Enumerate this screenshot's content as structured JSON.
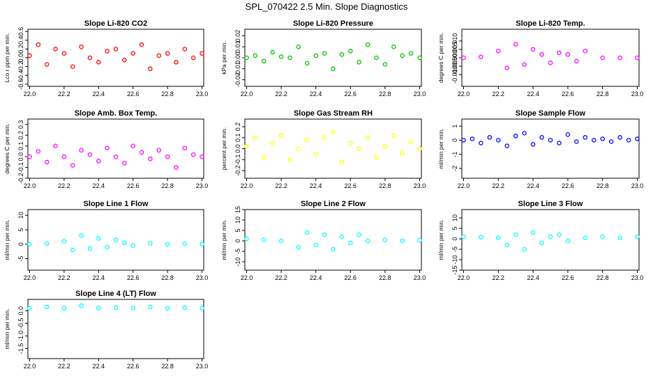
{
  "figure": {
    "title": "SPL_070422  2.5 Min. Slope Diagnostics",
    "x_tick_labels": [
      "22.0",
      "22.2",
      "22.4",
      "22.6",
      "22.8",
      "23.0"
    ]
  },
  "chart_data": [
    {
      "type": "scatter",
      "title": "Slope Li-820 CO2",
      "ylabel": "Lco r ppm per min.",
      "xlim": [
        21.99,
        23.01
      ],
      "ylim": [
        -0.65,
        0.65
      ],
      "yticks": [
        -0.6,
        -0.4,
        -0.2,
        0.0,
        0.2,
        0.4,
        0.6
      ],
      "ytick_labels": [
        "-0.6",
        "-0.4",
        "-0.2",
        "0.0",
        "0.2",
        "0.4",
        "0.6"
      ],
      "color": "#ff0000",
      "series": [
        {
          "x": [
            22.0,
            22.05,
            22.1,
            22.15,
            22.2,
            22.25,
            22.3,
            22.35,
            22.4,
            22.45,
            22.5,
            22.55,
            22.6,
            22.65,
            22.7,
            22.75,
            22.8,
            22.85,
            22.9,
            22.95,
            23.0
          ],
          "y": [
            0.05,
            0.3,
            -0.15,
            0.2,
            0.1,
            -0.2,
            0.25,
            0.0,
            -0.1,
            0.15,
            0.2,
            -0.05,
            0.1,
            0.3,
            -0.25,
            0.05,
            0.1,
            -0.1,
            0.2,
            0.0,
            0.1
          ]
        }
      ]
    },
    {
      "type": "scatter",
      "title": "Slope Li-820 Pressure",
      "ylabel": "kPa per min.",
      "xlim": [
        21.99,
        23.01
      ],
      "ylim": [
        -0.026,
        0.026
      ],
      "yticks": [
        -0.02,
        -0.01,
        0.0,
        0.01,
        0.02
      ],
      "ytick_labels": [
        "-0.02",
        "-0.01",
        "0.00",
        "0.01",
        "0.02"
      ],
      "color": "#00c000",
      "series": [
        {
          "x": [
            22.0,
            22.05,
            22.1,
            22.15,
            22.2,
            22.25,
            22.3,
            22.35,
            22.4,
            22.45,
            22.5,
            22.55,
            22.6,
            22.65,
            22.7,
            22.75,
            22.8,
            22.85,
            22.9,
            22.95,
            23.0
          ],
          "y": [
            0.0,
            0.002,
            -0.003,
            0.005,
            0.001,
            0.0,
            0.01,
            -0.005,
            0.002,
            0.004,
            -0.01,
            0.003,
            0.006,
            -0.004,
            0.012,
            0.0,
            -0.006,
            0.01,
            0.002,
            0.004,
            0.0
          ]
        }
      ]
    },
    {
      "type": "scatter",
      "title": "Slope Li-820 Temp.",
      "ylabel": "degrees C per min.",
      "xlim": [
        21.99,
        23.01
      ],
      "ylim": [
        -0.017,
        0.017
      ],
      "yticks": [
        -0.01,
        -0.005,
        0.0,
        0.005,
        0.01
      ],
      "ytick_labels": [
        "-0.010",
        "-0.005",
        "0.000",
        "0.005",
        "0.010"
      ],
      "color": "#ff00ff",
      "series": [
        {
          "x": [
            22.0,
            22.1,
            22.2,
            22.25,
            22.3,
            22.35,
            22.4,
            22.45,
            22.5,
            22.55,
            22.6,
            22.65,
            22.7,
            22.8,
            22.9,
            23.0
          ],
          "y": [
            0.0,
            0.0005,
            0.004,
            -0.006,
            0.008,
            -0.004,
            0.005,
            0.002,
            -0.003,
            0.003,
            0.002,
            -0.002,
            0.004,
            0.0,
            0.0,
            0.0
          ]
        }
      ]
    },
    {
      "type": "scatter",
      "title": "Slope Amb. Box Temp.",
      "ylabel": "degrees C per min.",
      "xlim": [
        21.99,
        23.01
      ],
      "ylim": [
        -0.2,
        0.35
      ],
      "yticks": [
        -0.2,
        -0.1,
        0.0,
        0.1,
        0.2,
        0.3
      ],
      "ytick_labels": [
        "-0.2",
        "-0.1",
        "0.0",
        "0.1",
        "0.2",
        "0.3"
      ],
      "color": "#ff00ff",
      "series": [
        {
          "x": [
            22.0,
            22.05,
            22.1,
            22.15,
            22.2,
            22.25,
            22.3,
            22.35,
            22.4,
            22.45,
            22.5,
            22.55,
            22.6,
            22.65,
            22.7,
            22.75,
            22.8,
            22.85,
            22.9,
            22.95,
            23.0
          ],
          "y": [
            0.0,
            0.05,
            -0.05,
            0.1,
            0.0,
            -0.08,
            0.06,
            0.02,
            -0.04,
            0.08,
            0.0,
            -0.06,
            0.1,
            0.04,
            -0.02,
            0.06,
            0.0,
            -0.1,
            0.08,
            0.02,
            0.0
          ]
        }
      ]
    },
    {
      "type": "scatter",
      "title": "Slope Gas Stream RH",
      "ylabel": "percent per min.",
      "xlim": [
        21.99,
        23.01
      ],
      "ylim": [
        -0.27,
        0.27
      ],
      "yticks": [
        -0.2,
        -0.1,
        0.0,
        0.1,
        0.2
      ],
      "ytick_labels": [
        "-0.2",
        "-0.1",
        "0.0",
        "0.1",
        "0.2"
      ],
      "color": "#ffff00",
      "series": [
        {
          "x": [
            22.0,
            22.05,
            22.1,
            22.15,
            22.2,
            22.25,
            22.3,
            22.35,
            22.4,
            22.45,
            22.5,
            22.55,
            22.6,
            22.65,
            22.7,
            22.75,
            22.8,
            22.85,
            22.9,
            22.95,
            23.0
          ],
          "y": [
            0.02,
            0.1,
            -0.08,
            0.05,
            0.12,
            -0.1,
            0.0,
            0.08,
            -0.05,
            0.1,
            0.15,
            -0.12,
            0.05,
            0.0,
            0.1,
            -0.08,
            0.02,
            0.12,
            -0.04,
            0.06,
            0.0
          ]
        }
      ]
    },
    {
      "type": "scatter",
      "title": "Slope Sample Flow",
      "ylabel": "ml/min per min.",
      "xlim": [
        21.99,
        23.01
      ],
      "ylim": [
        -2.7,
        1.5
      ],
      "yticks": [
        -2,
        -1,
        0,
        1
      ],
      "ytick_labels": [
        "-2",
        "-1",
        "0",
        "1"
      ],
      "color": "#0000ff",
      "series": [
        {
          "x": [
            22.0,
            22.05,
            22.1,
            22.15,
            22.2,
            22.25,
            22.3,
            22.35,
            22.4,
            22.45,
            22.5,
            22.55,
            22.6,
            22.65,
            22.7,
            22.75,
            22.8,
            22.85,
            22.9,
            22.95,
            23.0
          ],
          "y": [
            0.0,
            0.1,
            -0.2,
            0.2,
            0.0,
            -0.4,
            0.3,
            0.5,
            -0.3,
            0.2,
            0.0,
            -0.2,
            0.4,
            -0.1,
            0.2,
            0.0,
            0.1,
            -0.1,
            0.2,
            0.0,
            0.1
          ]
        }
      ]
    },
    {
      "type": "scatter",
      "title": "Slope Line 1 Flow",
      "ylabel": "ml/min per min.",
      "xlim": [
        21.99,
        23.01
      ],
      "ylim": [
        -9,
        12
      ],
      "yticks": [
        -5,
        0,
        5,
        10
      ],
      "ytick_labels": [
        "-5",
        "0",
        "5",
        "10"
      ],
      "color": "#00ffff",
      "series": [
        {
          "x": [
            22.0,
            22.1,
            22.2,
            22.25,
            22.3,
            22.35,
            22.4,
            22.45,
            22.5,
            22.55,
            22.6,
            22.7,
            22.8,
            22.9,
            23.0
          ],
          "y": [
            0.0,
            0.2,
            1.0,
            -2.0,
            3.0,
            -1.5,
            2.0,
            -1.0,
            1.5,
            0.5,
            -0.5,
            0.3,
            0.0,
            0.2,
            0.0
          ]
        }
      ]
    },
    {
      "type": "scatter",
      "title": "Slope Line 2 Flow",
      "ylabel": "ml/min per min.",
      "xlim": [
        21.99,
        23.01
      ],
      "ylim": [
        -14,
        15
      ],
      "yticks": [
        -10,
        -5,
        0,
        5,
        10,
        15
      ],
      "ytick_labels": [
        "-10",
        "-5",
        "0",
        "5",
        "10",
        "15"
      ],
      "color": "#00ffff",
      "series": [
        {
          "x": [
            22.0,
            22.1,
            22.2,
            22.3,
            22.35,
            22.4,
            22.45,
            22.5,
            22.55,
            22.6,
            22.65,
            22.7,
            22.8,
            22.9,
            23.0
          ],
          "y": [
            1.0,
            0.5,
            0.0,
            -3.0,
            4.0,
            -2.0,
            3.0,
            -4.0,
            2.0,
            -1.0,
            3.0,
            0.0,
            0.5,
            0.0,
            0.3
          ]
        }
      ]
    },
    {
      "type": "scatter",
      "title": "Slope Line 3 Flow",
      "ylabel": "ml/min per min.",
      "xlim": [
        21.99,
        23.01
      ],
      "ylim": [
        -15,
        14
      ],
      "yticks": [
        -15,
        -10,
        -5,
        0,
        5,
        10
      ],
      "ytick_labels": [
        "-15",
        "-10",
        "-5",
        "0",
        "5",
        "10"
      ],
      "color": "#00ffff",
      "series": [
        {
          "x": [
            22.0,
            22.1,
            22.2,
            22.25,
            22.3,
            22.35,
            22.4,
            22.45,
            22.5,
            22.55,
            22.6,
            22.7,
            22.8,
            22.9,
            23.0
          ],
          "y": [
            1.0,
            0.8,
            0.5,
            -3.0,
            2.0,
            -5.0,
            3.0,
            -2.0,
            1.0,
            2.0,
            -1.0,
            0.5,
            1.0,
            0.5,
            1.0
          ]
        }
      ]
    },
    {
      "type": "scatter",
      "title": "Slope Line 4 (LT) Flow",
      "ylabel": "ml/min per min.",
      "xlim": [
        21.99,
        23.01
      ],
      "ylim": [
        -1.9,
        0.45
      ],
      "yticks": [
        -1.5,
        -1.0,
        -0.5,
        0.0
      ],
      "ytick_labels": [
        "-1.5",
        "-1.0",
        "-0.5",
        "0.0"
      ],
      "color": "#00ffff",
      "series": [
        {
          "x": [
            22.0,
            22.1,
            22.2,
            22.3,
            22.4,
            22.5,
            22.6,
            22.7,
            22.8,
            22.9,
            23.0
          ],
          "y": [
            0.1,
            0.15,
            0.1,
            0.2,
            0.1,
            0.12,
            0.1,
            0.15,
            0.1,
            0.12,
            0.1
          ]
        }
      ]
    }
  ]
}
